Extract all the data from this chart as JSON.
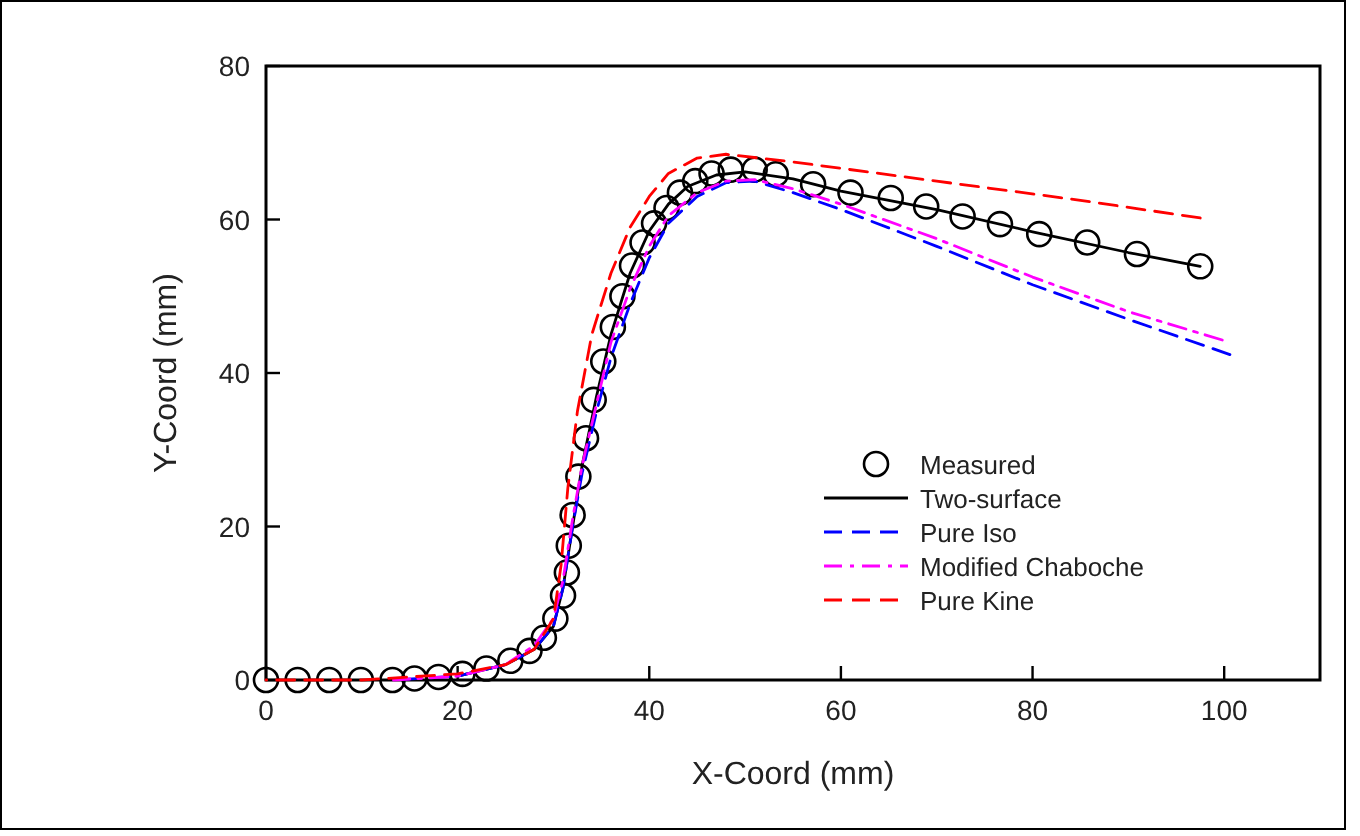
{
  "chart_data": {
    "type": "line",
    "xlabel": "X-Coord (mm)",
    "ylabel": "Y-Coord (mm)",
    "xlim": [
      0,
      110
    ],
    "xticks": [
      0,
      20,
      40,
      60,
      80,
      100
    ],
    "ylim": [
      0,
      80
    ],
    "yticks": [
      0,
      20,
      40,
      60,
      80
    ],
    "grid": false,
    "legend": "bottom right",
    "series": [
      {
        "name": "Measured",
        "type": "scatter",
        "marker": "circle",
        "color": "#000000",
        "x": [
          0,
          3.3,
          6.6,
          9.9,
          13.2,
          15.5,
          18,
          20.5,
          23,
          25.5,
          27.5,
          29,
          30.2,
          31,
          31.4,
          31.6,
          32,
          32.6,
          33.4,
          34.2,
          35.2,
          36.2,
          37.2,
          38.2,
          39.3,
          40.5,
          41.8,
          43.2,
          44.8,
          46.5,
          48.5,
          51,
          53.2,
          57.1,
          61,
          65.2,
          68.9,
          72.7,
          76.6,
          80.7,
          85.7,
          90.9,
          97.5
        ],
        "values": [
          0,
          0,
          0,
          0,
          0,
          0.2,
          0.4,
          0.8,
          1.5,
          2.5,
          3.8,
          5.5,
          8,
          11,
          14,
          17.5,
          21.5,
          26.5,
          31.5,
          36.5,
          41.5,
          46,
          50,
          54,
          57,
          59.5,
          61.5,
          63.5,
          65,
          66,
          66.5,
          66.5,
          65.9,
          64.6,
          63.5,
          62.8,
          61.7,
          60.4,
          59.4,
          58.1,
          57,
          55.5,
          53.9
        ]
      },
      {
        "name": "Two-surface",
        "type": "line",
        "marker": "none",
        "line_style": "solid",
        "color": "#000000",
        "x": [
          20,
          25,
          28,
          30,
          31,
          32,
          33,
          34.5,
          36,
          38,
          40,
          42,
          44,
          47,
          50,
          55,
          60,
          70,
          80,
          90,
          97.5
        ],
        "values": [
          0.5,
          2,
          4,
          7,
          12,
          20,
          28,
          37,
          45,
          53,
          58.5,
          62,
          64.3,
          65.8,
          66.2,
          65.3,
          63.7,
          61.3,
          58.4,
          55.7,
          53.9
        ]
      },
      {
        "name": "Pure Iso",
        "type": "line",
        "marker": "none",
        "line_style": "dashed",
        "color": "#0000ff",
        "x": [
          13.3,
          20,
          25,
          28,
          30,
          31,
          32,
          33,
          34.5,
          36,
          38,
          40,
          42,
          45,
          48,
          51,
          55,
          60,
          70,
          80,
          90,
          100.6
        ],
        "values": [
          0,
          0.5,
          2,
          4,
          7,
          12,
          20,
          27,
          35,
          42,
          49,
          55,
          59.5,
          63,
          64.8,
          65,
          63.5,
          61.3,
          56.5,
          51.5,
          47,
          42.4
        ]
      },
      {
        "name": "Modified Chaboche",
        "type": "line",
        "marker": "none",
        "line_style": "dashdot",
        "color": "#ff00ff",
        "x": [
          13.3,
          20,
          25,
          28,
          30,
          31,
          32,
          33,
          34.5,
          36,
          38,
          40,
          42,
          45,
          48,
          51,
          55,
          60,
          70,
          80,
          90,
          99.8
        ],
        "values": [
          0,
          0.5,
          2,
          4.5,
          8,
          13,
          21,
          28,
          36,
          44,
          51,
          56.5,
          60.5,
          63.5,
          65,
          65.2,
          64,
          62,
          57.5,
          52.5,
          48,
          44.3
        ]
      },
      {
        "name": "Pure Kine",
        "type": "line",
        "marker": "none",
        "line_style": "dashed",
        "color": "#ff0000",
        "x": [
          0,
          10,
          20,
          25,
          28,
          30,
          30.8,
          31.5,
          32.5,
          34,
          36,
          38,
          40,
          42,
          45,
          48,
          55,
          70,
          85,
          97.5
        ],
        "values": [
          0,
          0,
          0.8,
          2,
          4,
          8,
          15,
          25,
          35,
          45,
          53,
          59,
          63,
          66,
          68,
          68.5,
          67.5,
          65,
          62.5,
          60.2
        ]
      }
    ]
  }
}
